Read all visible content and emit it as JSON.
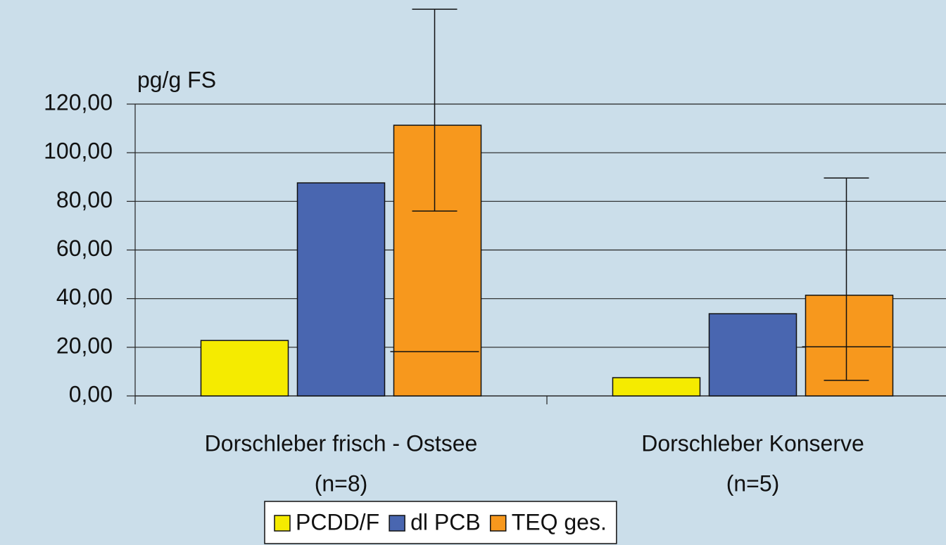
{
  "chart_data": {
    "type": "bar",
    "y_unit_label": "pg/g FS",
    "categories": [
      [
        "Dorschleber frisch - Ostsee",
        "(n=8)"
      ],
      [
        "Dorschleber Konserve",
        "(n=5)"
      ]
    ],
    "series": [
      {
        "name": "PCDD/F",
        "color": "#f5eb00",
        "values": [
          22.8,
          7.5
        ]
      },
      {
        "name": "dl PCB",
        "color": "#4966b0",
        "values": [
          87.6,
          33.8
        ]
      },
      {
        "name": "TEQ ges.",
        "color": "#f7981d",
        "values": [
          111.3,
          41.4
        ],
        "error_high": [
          159,
          89.6
        ],
        "error_low": [
          76,
          6.4
        ],
        "error_extra": [
          18.2,
          20.2
        ]
      }
    ],
    "ylim": [
      0,
      120
    ],
    "yticks": [
      {
        "value": 0,
        "label": "0,00"
      },
      {
        "value": 20,
        "label": "20,00"
      },
      {
        "value": 40,
        "label": "40,00"
      },
      {
        "value": 60,
        "label": "60,00"
      },
      {
        "value": 80,
        "label": "80,00"
      },
      {
        "value": 100,
        "label": "100,00"
      },
      {
        "value": 120,
        "label": "120,00"
      }
    ],
    "grid": true
  }
}
